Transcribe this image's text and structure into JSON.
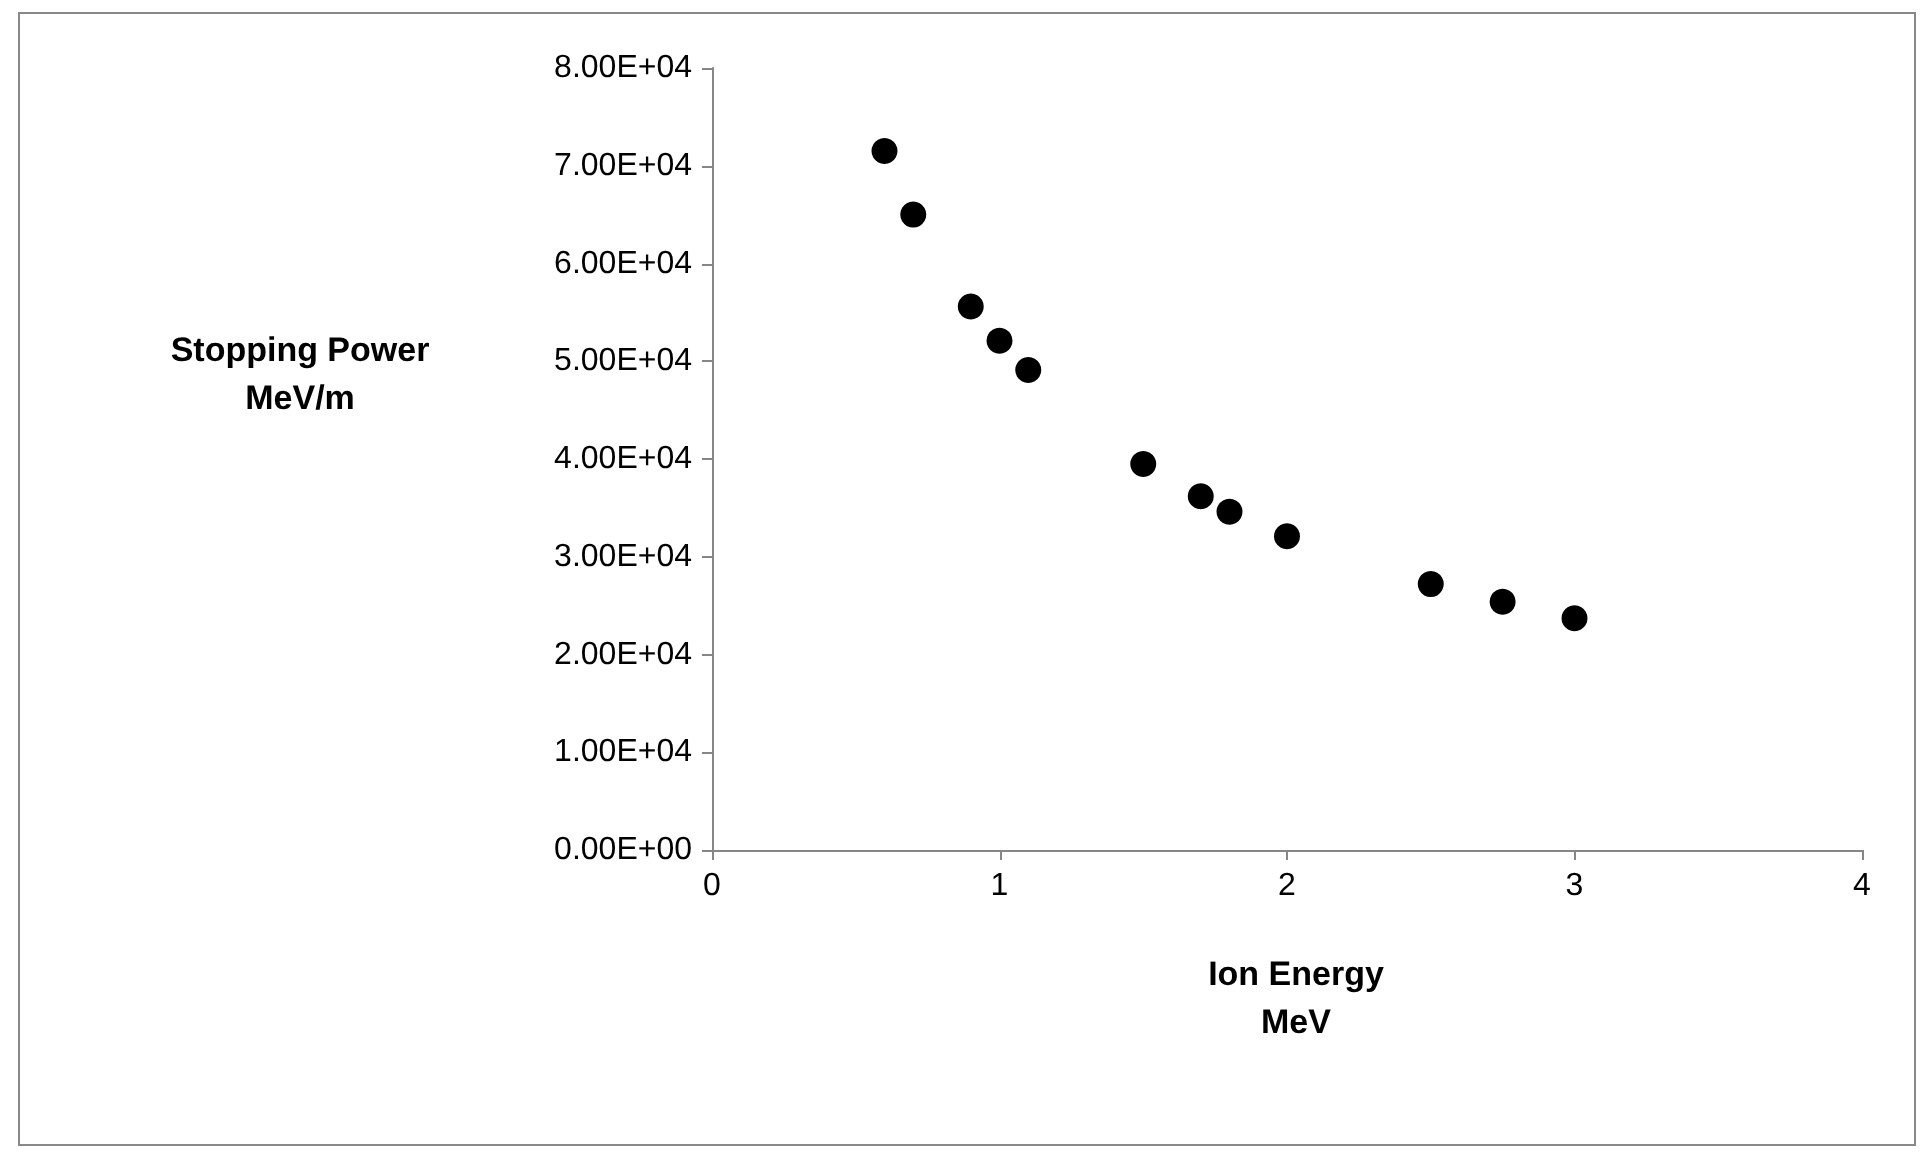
{
  "chart_data": {
    "type": "scatter",
    "xlabel": "Ion Energy\nMeV",
    "ylabel": "Stopping Power\nMeV/m",
    "x": [
      0.6,
      0.7,
      0.9,
      1.0,
      1.1,
      1.5,
      1.7,
      1.8,
      2.0,
      2.5,
      2.75,
      3.0
    ],
    "values": [
      71500,
      65000,
      55600,
      52100,
      49100,
      39500,
      36200,
      34600,
      32100,
      27200,
      25400,
      23700
    ],
    "color": "#000000",
    "marker": "circle",
    "xlim": [
      0,
      4
    ],
    "xticks": [
      0,
      1,
      2,
      3,
      4
    ],
    "ylim": [
      0,
      80000
    ],
    "yticks": [
      {
        "value": 0,
        "label": "0.00E+00"
      },
      {
        "value": 10000,
        "label": "1.00E+04"
      },
      {
        "value": 20000,
        "label": "2.00E+04"
      },
      {
        "value": 30000,
        "label": "3.00E+04"
      },
      {
        "value": 40000,
        "label": "4.00E+04"
      },
      {
        "value": 50000,
        "label": "5.00E+04"
      },
      {
        "value": 60000,
        "label": "6.00E+04"
      },
      {
        "value": 70000,
        "label": "7.00E+04"
      },
      {
        "value": 80000,
        "label": "8.00E+04"
      }
    ]
  }
}
